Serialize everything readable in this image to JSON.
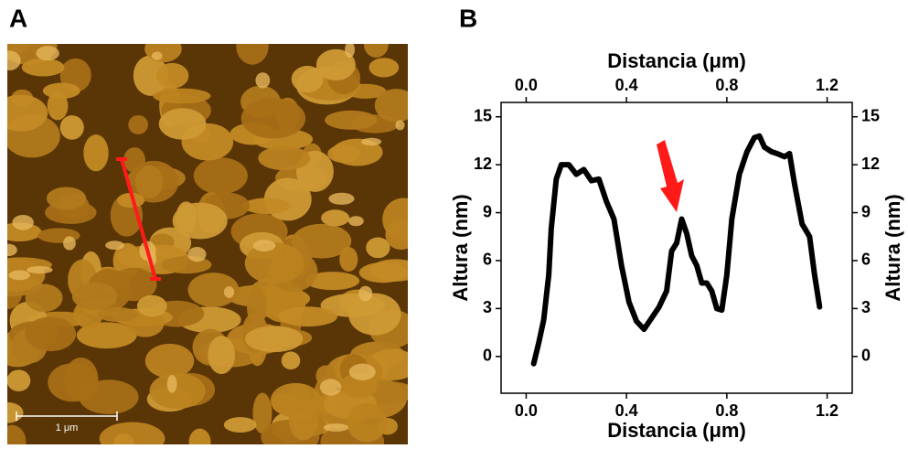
{
  "panel_labels": {
    "a": "A",
    "b": "B"
  },
  "image": {
    "scale_label": "1 μm"
  },
  "chart_data": {
    "type": "line",
    "xlabel": "Distancia (μm)",
    "ylabel": "Altura (nm)",
    "x": [
      0.03,
      0.05,
      0.07,
      0.09,
      0.1,
      0.12,
      0.14,
      0.17,
      0.2,
      0.23,
      0.26,
      0.29,
      0.32,
      0.35,
      0.38,
      0.41,
      0.44,
      0.47,
      0.5,
      0.53,
      0.56,
      0.58,
      0.6,
      0.62,
      0.64,
      0.66,
      0.68,
      0.7,
      0.72,
      0.74,
      0.76,
      0.78,
      0.8,
      0.82,
      0.85,
      0.88,
      0.91,
      0.93,
      0.95,
      0.98,
      1.0,
      1.03,
      1.05,
      1.07,
      1.1,
      1.13,
      1.15,
      1.17
    ],
    "series": [
      {
        "color": "#000000",
        "values": [
          -0.45,
          0.85,
          2.3,
          5.1,
          8,
          11.1,
          12,
          12,
          11.4,
          11.7,
          11,
          11.1,
          9.7,
          8.6,
          5.7,
          3.4,
          2.2,
          1.7,
          2.4,
          3.1,
          4.1,
          6.6,
          7.1,
          8.6,
          7.7,
          6.3,
          5.7,
          4.6,
          4.6,
          4.1,
          3,
          2.9,
          5.1,
          8.6,
          11.4,
          12.8,
          13.7,
          13.8,
          13.1,
          12.8,
          12.7,
          12.5,
          12.7,
          10.8,
          8.3,
          7.5,
          5.1,
          3.1
        ]
      }
    ],
    "xlim": [
      -0.1,
      1.3
    ],
    "ylim": [
      -2.3,
      15.9
    ],
    "xticks": [
      {
        "value": 0,
        "label": "0.0"
      },
      0.4,
      0.8,
      1.2
    ],
    "yticks": [
      0,
      3,
      6,
      9,
      12,
      15
    ]
  }
}
